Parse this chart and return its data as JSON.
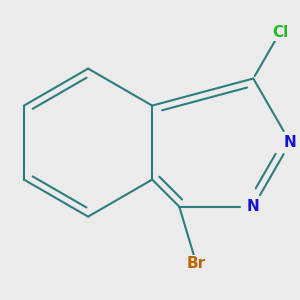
{
  "bg_color": "#ebebeb",
  "bond_color": "#2d7d7d",
  "nitrogen_color": "#1414cc",
  "chlorine_color": "#22bb22",
  "bromine_color": "#bb6600",
  "bond_width": 1.5,
  "doffset": 0.048,
  "font_size_atom": 11,
  "cl_label": "Cl",
  "br_label": "Br",
  "n_label": "N"
}
